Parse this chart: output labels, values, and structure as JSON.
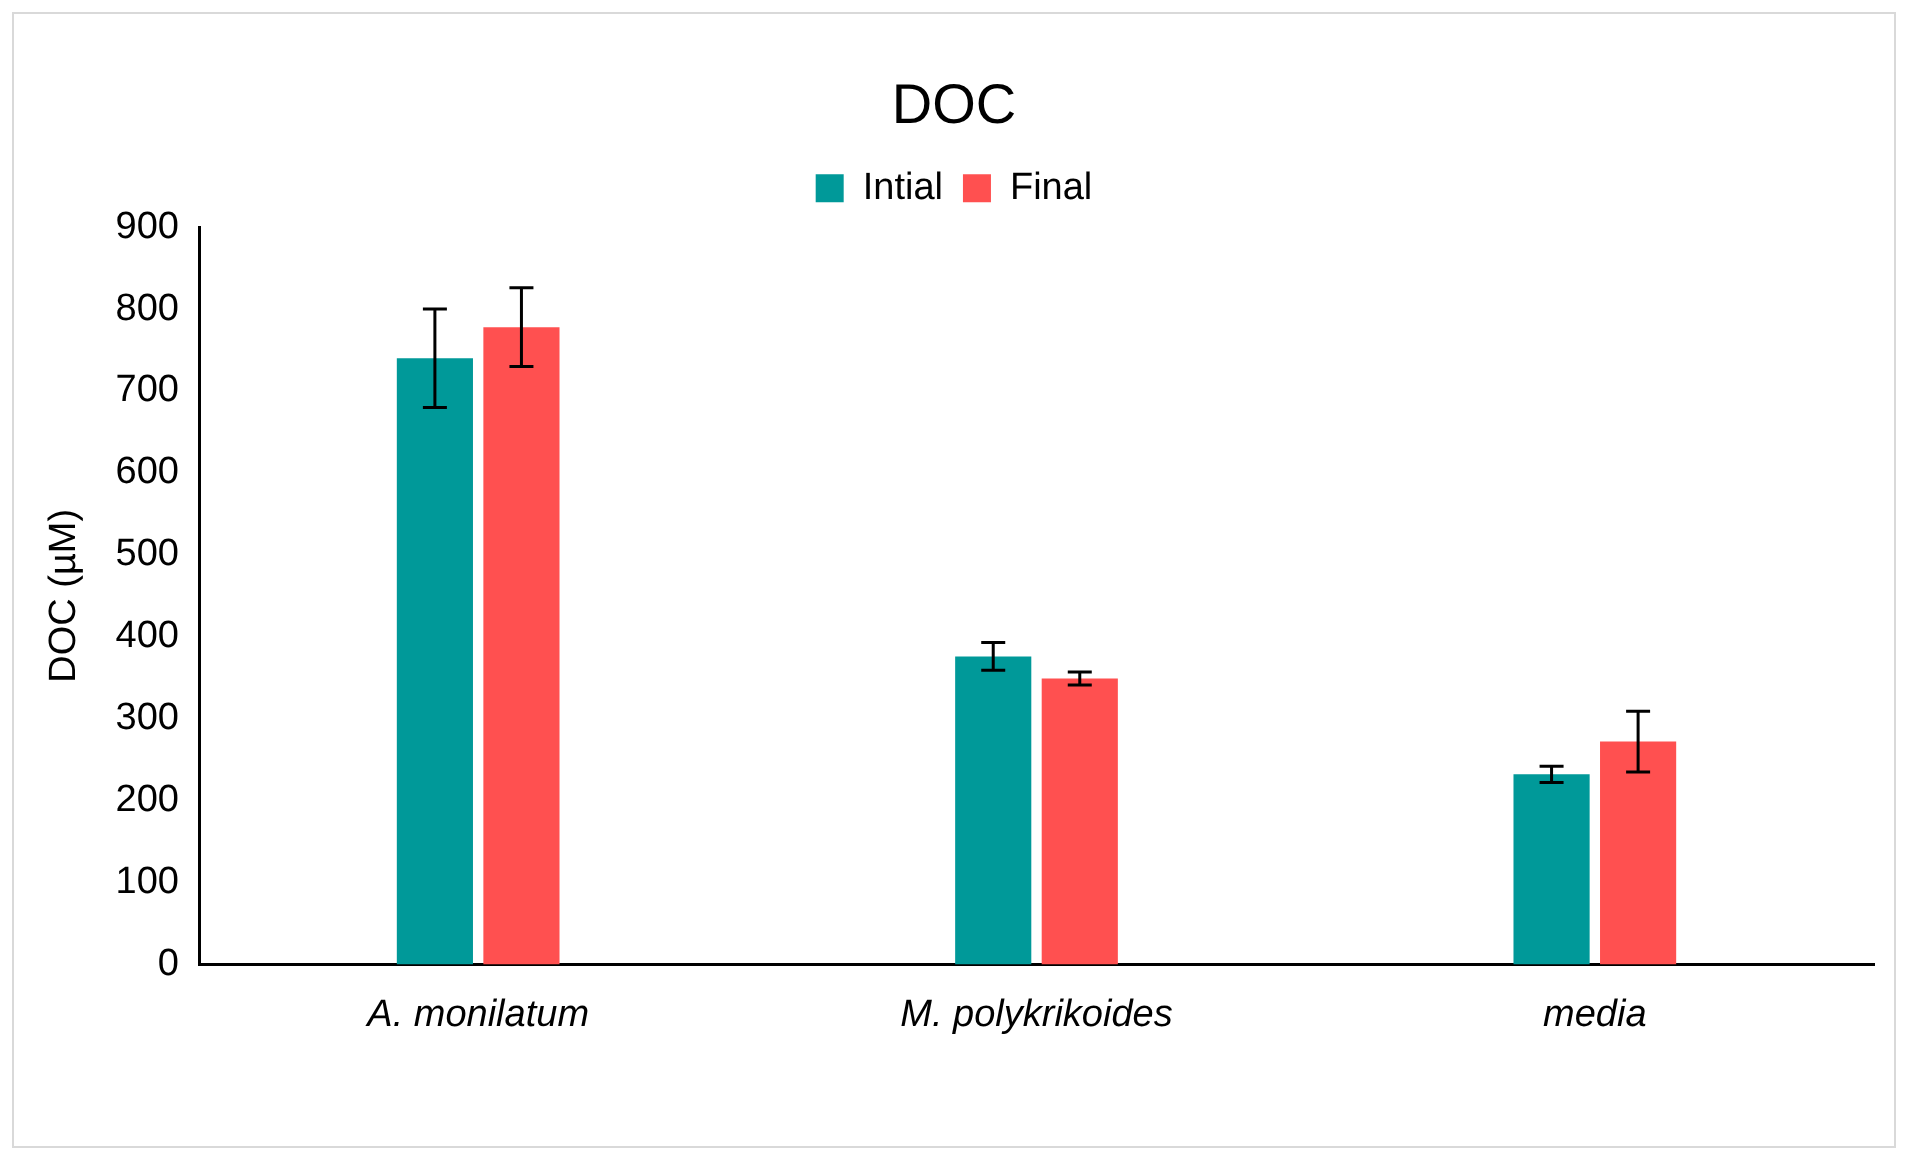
{
  "chart_data": {
    "type": "bar",
    "title": "DOC",
    "ylabel": "DOC (µM)",
    "categories": [
      "A. monilatum",
      "M. polykrikoides",
      "media"
    ],
    "series": [
      {
        "name": "Intial",
        "color": "#009999",
        "values": [
          740,
          376,
          232
        ],
        "errors": [
          60,
          17,
          10
        ]
      },
      {
        "name": "Final",
        "color": "#ff5050",
        "values": [
          778,
          349,
          272
        ],
        "errors": [
          48,
          8,
          37
        ]
      }
    ],
    "ylim": [
      0,
      900
    ],
    "yticks": [
      0,
      100,
      200,
      300,
      400,
      500,
      600,
      700,
      800,
      900
    ],
    "grid": false,
    "legend": "top"
  }
}
